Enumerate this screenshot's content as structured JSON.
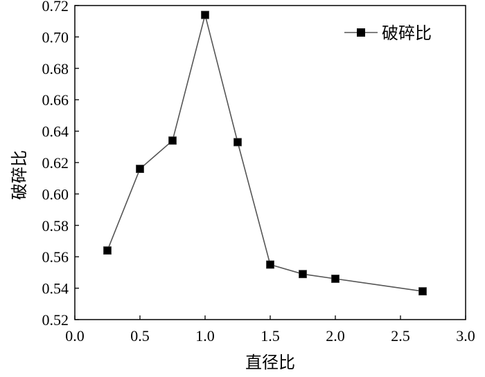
{
  "chart_data": {
    "type": "line",
    "xlabel": "直径比",
    "ylabel": "破碎比",
    "xlim": [
      0.0,
      3.0
    ],
    "ylim": [
      0.52,
      0.72
    ],
    "x_ticks": [
      "0.0",
      "0.5",
      "1.0",
      "1.5",
      "2.0",
      "2.5",
      "3.0"
    ],
    "y_ticks": [
      "0.52",
      "0.54",
      "0.56",
      "0.58",
      "0.60",
      "0.62",
      "0.64",
      "0.66",
      "0.68",
      "0.70",
      "0.72"
    ],
    "grid": false,
    "legend": {
      "position": "top-right"
    },
    "series": [
      {
        "name": "破碎比",
        "color": "#000000",
        "line_color": "#555555",
        "marker": "square",
        "x": [
          0.25,
          0.5,
          0.75,
          1.0,
          1.25,
          1.5,
          1.75,
          2.0,
          2.67
        ],
        "y": [
          0.564,
          0.616,
          0.634,
          0.714,
          0.633,
          0.555,
          0.549,
          0.546,
          0.538
        ]
      }
    ]
  }
}
